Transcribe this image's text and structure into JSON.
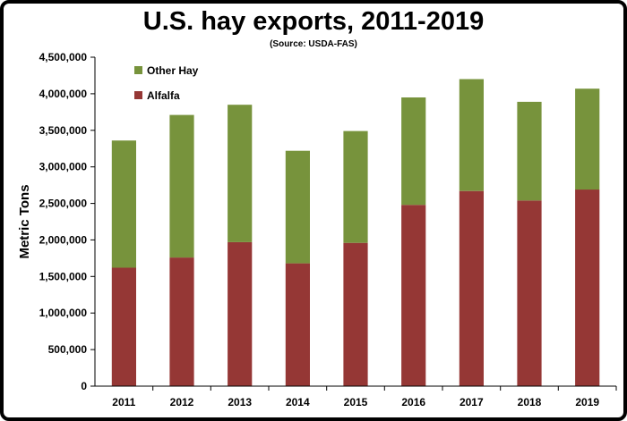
{
  "chart_data": {
    "type": "bar",
    "stacked": true,
    "title": "U.S. hay exports, 2011-2019",
    "subtitle": "(Source: USDA-FAS)",
    "xlabel": "",
    "ylabel": "Metric Tons",
    "ylim": [
      0,
      4500000
    ],
    "yticks": [
      "0",
      "500,000",
      "1,000,000",
      "1,500,000",
      "2,000,000",
      "2,500,000",
      "3,000,000",
      "3,500,000",
      "4,000,000",
      "4,500,000"
    ],
    "categories": [
      "2011",
      "2012",
      "2013",
      "2014",
      "2015",
      "2016",
      "2017",
      "2018",
      "2019"
    ],
    "series": [
      {
        "name": "Alfalfa",
        "color": "#953735",
        "values": [
          1620000,
          1760000,
          1970000,
          1680000,
          1960000,
          2480000,
          2670000,
          2540000,
          2690000
        ]
      },
      {
        "name": "Other Hay",
        "color": "#77933C",
        "values": [
          1740000,
          1950000,
          1880000,
          1540000,
          1530000,
          1470000,
          1530000,
          1350000,
          1380000
        ]
      }
    ],
    "legend": {
      "position": "top-left",
      "order": [
        "Other Hay",
        "Alfalfa"
      ]
    },
    "grid": false
  }
}
